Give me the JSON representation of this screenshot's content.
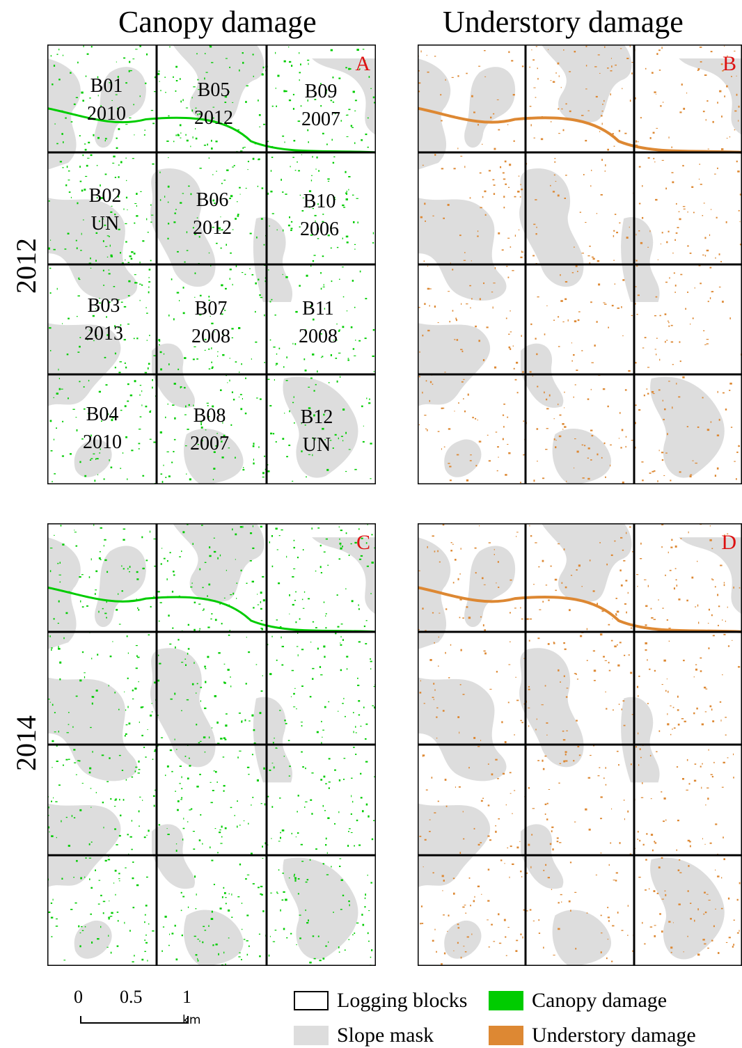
{
  "column_titles": {
    "canopy": "Canopy damage",
    "understory": "Understory damage"
  },
  "row_titles": {
    "first": "2012",
    "second": "2014"
  },
  "panels": {
    "A": {
      "letter": "A",
      "layer": "canopy",
      "year": "2012"
    },
    "B": {
      "letter": "B",
      "layer": "understory",
      "year": "2012"
    },
    "C": {
      "letter": "C",
      "layer": "canopy",
      "year": "2014"
    },
    "D": {
      "letter": "D",
      "layer": "understory",
      "year": "2014"
    }
  },
  "blocks": [
    {
      "id": "B01",
      "year": "2010"
    },
    {
      "id": "B02",
      "year": "UN"
    },
    {
      "id": "B03",
      "year": "2013"
    },
    {
      "id": "B04",
      "year": "2010"
    },
    {
      "id": "B05",
      "year": "2012"
    },
    {
      "id": "B06",
      "year": "2012"
    },
    {
      "id": "B07",
      "year": "2008"
    },
    {
      "id": "B08",
      "year": "2007"
    },
    {
      "id": "B09",
      "year": "2007"
    },
    {
      "id": "B10",
      "year": "2006"
    },
    {
      "id": "B11",
      "year": "2008"
    },
    {
      "id": "B12",
      "year": "UN"
    }
  ],
  "scale_bar": {
    "ticks": [
      "0",
      "0.5",
      "1"
    ],
    "unit": "km"
  },
  "legend": [
    {
      "label": "Logging blocks",
      "kind": "outline"
    },
    {
      "label": "Canopy damage",
      "kind": "fill",
      "color": "#00cc00"
    },
    {
      "label": "Slope mask",
      "kind": "fill",
      "color": "#dddddd"
    },
    {
      "label": "Understory damage",
      "kind": "fill",
      "color": "#dd8833"
    }
  ],
  "colors": {
    "canopy_damage": "#00cc00",
    "understory_damage": "#dd8833",
    "slope_mask": "#dddddd",
    "panel_letter": "#dd1111",
    "block_outline": "#000000"
  }
}
